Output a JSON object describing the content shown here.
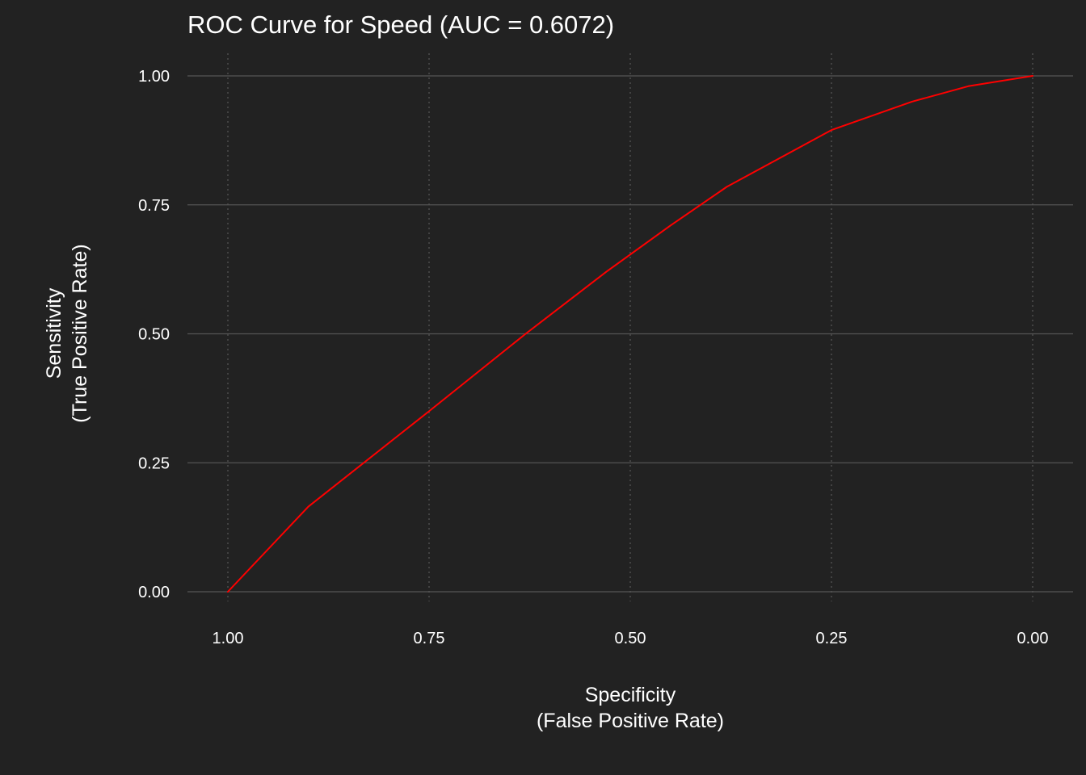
{
  "chart_data": {
    "type": "line",
    "title": "ROC Curve for Speed (AUC = 0.6072)",
    "xlabel": [
      "Specificity",
      "(False Positive Rate)"
    ],
    "ylabel": [
      "Sensitivity",
      "(True Positive Rate)"
    ],
    "x_reversed": true,
    "xlim": [
      1.0,
      0.0
    ],
    "ylim": [
      0.0,
      1.0
    ],
    "x_ticks": [
      1.0,
      0.75,
      0.5,
      0.25,
      0.0
    ],
    "x_tick_labels": [
      "1.00",
      "0.75",
      "0.50",
      "0.25",
      "0.00"
    ],
    "y_ticks": [
      0.0,
      0.25,
      0.5,
      0.75,
      1.0
    ],
    "y_tick_labels": [
      "0.00",
      "0.25",
      "0.50",
      "0.75",
      "1.00"
    ],
    "grid": {
      "horizontal": "solid",
      "vertical": "dotted"
    },
    "series": [
      {
        "color": "#ff0000",
        "x": [
          1.0,
          0.9,
          0.75,
          0.63,
          0.53,
          0.45,
          0.38,
          0.25,
          0.15,
          0.08,
          0.0
        ],
        "y": [
          0.0,
          0.165,
          0.35,
          0.5,
          0.62,
          0.71,
          0.785,
          0.895,
          0.95,
          0.98,
          1.0
        ]
      }
    ],
    "colors": {
      "background": "#222222",
      "grid": "#555555",
      "text": "#ffffff",
      "line": "#ff0000"
    }
  }
}
